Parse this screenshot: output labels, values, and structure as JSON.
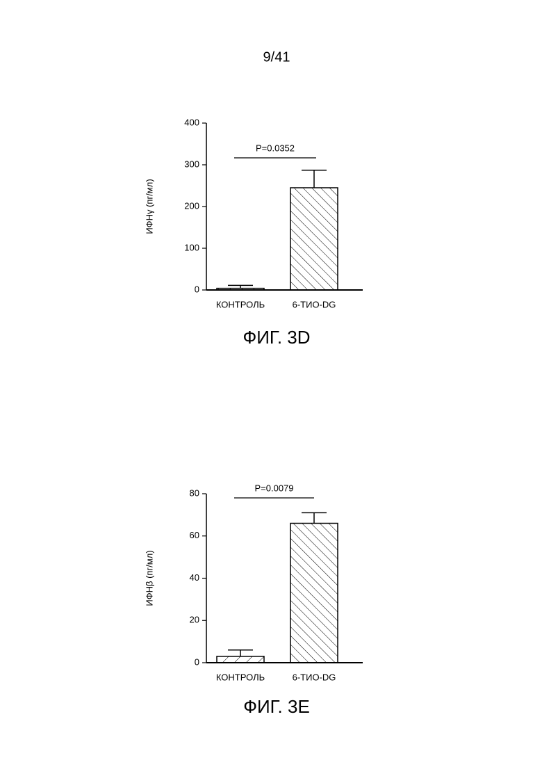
{
  "page_number": "9/41",
  "chart_data": [
    {
      "type": "bar",
      "y_label": "ИФНγ (пг/мл)",
      "annotation": "P=0.0352",
      "caption": "ФИГ. 3D",
      "categories": [
        "КОНТРОЛЬ",
        "6-ТИО-DG"
      ],
      "values": [
        4,
        245
      ],
      "errors": [
        7,
        42
      ],
      "color": "#000000",
      "ylim": [
        0,
        400
      ],
      "yticks": [
        0,
        100,
        200,
        300,
        400
      ]
    },
    {
      "type": "bar",
      "y_label": "ИФНβ (пг/мл)",
      "annotation": "P=0.0079",
      "caption": "ФИГ. 3E",
      "categories": [
        "КОНТРОЛЬ",
        "6-ТИО-DG"
      ],
      "values": [
        3,
        66
      ],
      "errors": [
        3,
        5
      ],
      "color": "#000000",
      "ylim": [
        0,
        80
      ],
      "yticks": [
        0,
        20,
        40,
        60,
        80
      ]
    }
  ]
}
